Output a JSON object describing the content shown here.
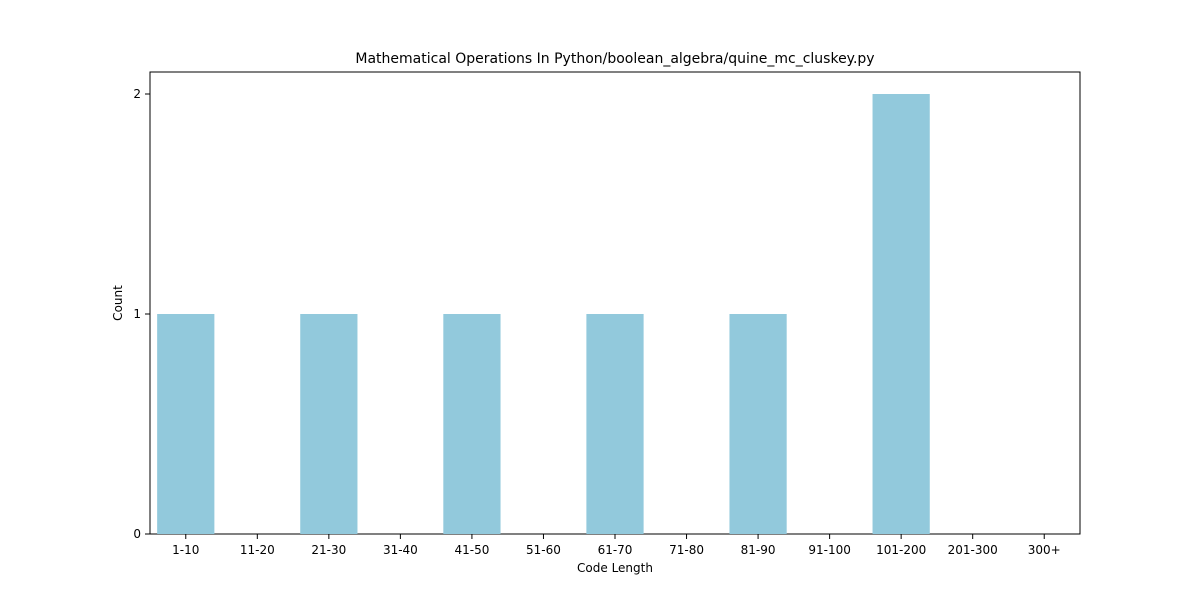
{
  "chart_data": {
    "type": "bar",
    "title": "Mathematical Operations In Python/boolean_algebra/quine_mc_cluskey.py",
    "xlabel": "Code Length",
    "ylabel": "Count",
    "categories": [
      "1-10",
      "11-20",
      "21-30",
      "31-40",
      "41-50",
      "51-60",
      "61-70",
      "71-80",
      "81-90",
      "91-100",
      "101-200",
      "201-300",
      "300+"
    ],
    "values": [
      1,
      0,
      1,
      0,
      1,
      0,
      1,
      0,
      1,
      0,
      2,
      0,
      0
    ],
    "yticks": [
      "0",
      "1",
      "2"
    ],
    "ylim": [
      0,
      2.1
    ],
    "grid": false,
    "bar_color": "#92c9dc"
  }
}
